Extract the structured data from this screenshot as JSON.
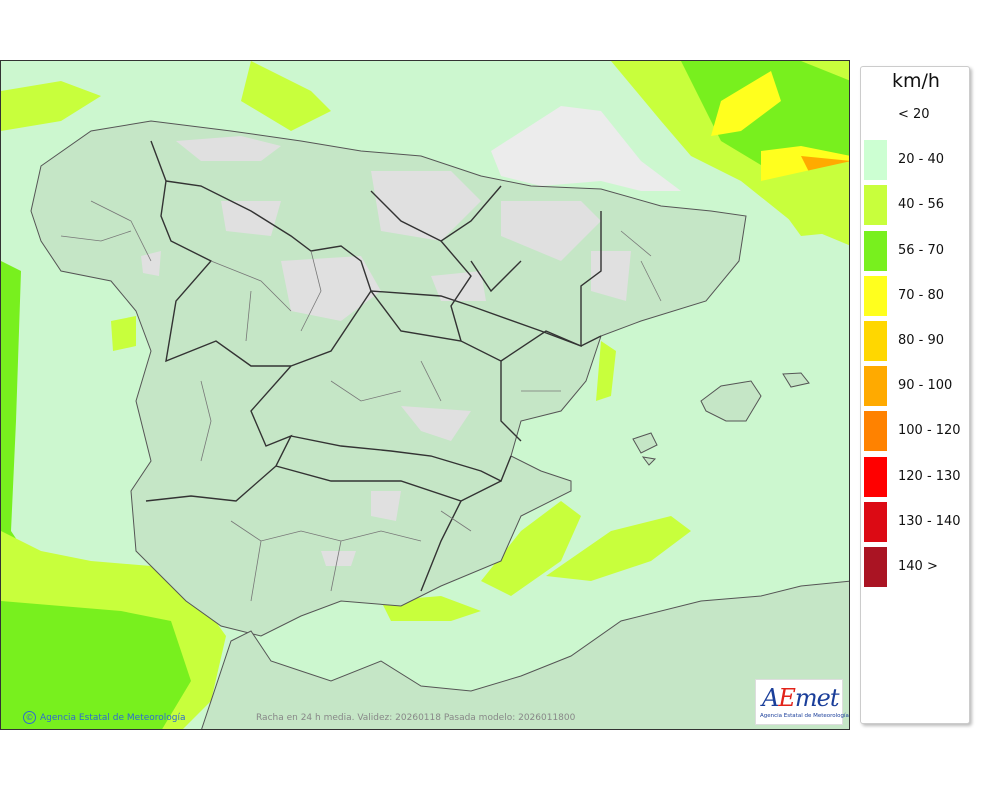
{
  "map": {
    "credit_text": "Agencia Estatal de Meteorología",
    "caption": "Racha en 24 h media. Validez: 20260118 Pasada modelo: 2026011800",
    "logo": {
      "brand_prefix": "A",
      "brand_e": "E",
      "brand_suffix": "met",
      "subtitle": "Agencia Estatal de Meteorología"
    },
    "colors": {
      "sea_base": "#ccf7cf",
      "land": "#c5e6c6",
      "borders": "#333333",
      "lowland_grey": "#e0e0e0"
    }
  },
  "legend": {
    "unit": "km/h",
    "items": [
      {
        "label": "< 20",
        "color": "#ffffff"
      },
      {
        "label": "20 - 40",
        "color": "#ccffd2"
      },
      {
        "label": "40 - 56",
        "color": "#c8ff3c"
      },
      {
        "label": "56 - 70",
        "color": "#78f01e"
      },
      {
        "label": "70 - 80",
        "color": "#ffff1e"
      },
      {
        "label": "80 - 90",
        "color": "#ffd700"
      },
      {
        "label": "90 - 100",
        "color": "#ffaa00"
      },
      {
        "label": "100 - 120",
        "color": "#ff8200"
      },
      {
        "label": "120 - 130",
        "color": "#ff0000"
      },
      {
        "label": "130 - 140",
        "color": "#dc0a14"
      },
      {
        "label": "140 >",
        "color": "#aa1423"
      }
    ]
  }
}
